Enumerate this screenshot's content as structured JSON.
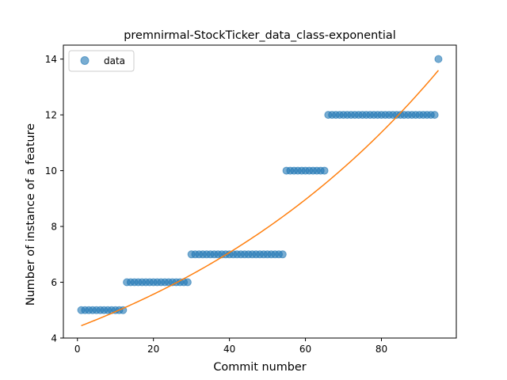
{
  "chart_data": {
    "type": "scatter",
    "title": "premnirmal-StockTicker_data_class-exponential",
    "xlabel": "Commit number",
    "ylabel": "Number of instance of a feature",
    "xlim": [
      -3.7,
      99.7
    ],
    "ylim": [
      4,
      14.5
    ],
    "x_ticks": [
      0,
      20,
      40,
      60,
      80
    ],
    "y_ticks": [
      4,
      6,
      8,
      10,
      12,
      14
    ],
    "grid": false,
    "legend": {
      "position": "top-left",
      "entries": [
        "data"
      ]
    },
    "series": [
      {
        "name": "data",
        "kind": "scatter",
        "color": "#1f77b4",
        "x": [
          1,
          2,
          3,
          4,
          5,
          6,
          7,
          8,
          9,
          10,
          11,
          12,
          13,
          14,
          15,
          16,
          17,
          18,
          19,
          20,
          21,
          22,
          23,
          24,
          25,
          26,
          27,
          28,
          29,
          30,
          31,
          32,
          33,
          34,
          35,
          36,
          37,
          38,
          39,
          40,
          41,
          42,
          43,
          44,
          45,
          46,
          47,
          48,
          49,
          50,
          51,
          52,
          53,
          54,
          55,
          56,
          57,
          58,
          59,
          60,
          61,
          62,
          63,
          64,
          65,
          66,
          67,
          68,
          69,
          70,
          71,
          72,
          73,
          74,
          75,
          76,
          77,
          78,
          79,
          80,
          81,
          82,
          83,
          84,
          85,
          86,
          87,
          88,
          89,
          90,
          91,
          92,
          93,
          94,
          95
        ],
        "y": [
          5,
          5,
          5,
          5,
          5,
          5,
          5,
          5,
          5,
          5,
          5,
          5,
          6,
          6,
          6,
          6,
          6,
          6,
          6,
          6,
          6,
          6,
          6,
          6,
          6,
          6,
          6,
          6,
          6,
          7,
          7,
          7,
          7,
          7,
          7,
          7,
          7,
          7,
          7,
          7,
          7,
          7,
          7,
          7,
          7,
          7,
          7,
          7,
          7,
          7,
          7,
          7,
          7,
          7,
          10,
          10,
          10,
          10,
          10,
          10,
          10,
          10,
          10,
          10,
          10,
          12,
          12,
          12,
          12,
          12,
          12,
          12,
          12,
          12,
          12,
          12,
          12,
          12,
          12,
          12,
          12,
          12,
          12,
          12,
          12,
          12,
          12,
          12,
          12,
          12,
          12,
          12,
          12,
          12,
          14
        ]
      },
      {
        "name": "",
        "kind": "line",
        "color": "#ff7f0e",
        "fit": {
          "a": 4.39,
          "b": 0.0119
        },
        "x_range": [
          1,
          95
        ]
      }
    ]
  }
}
